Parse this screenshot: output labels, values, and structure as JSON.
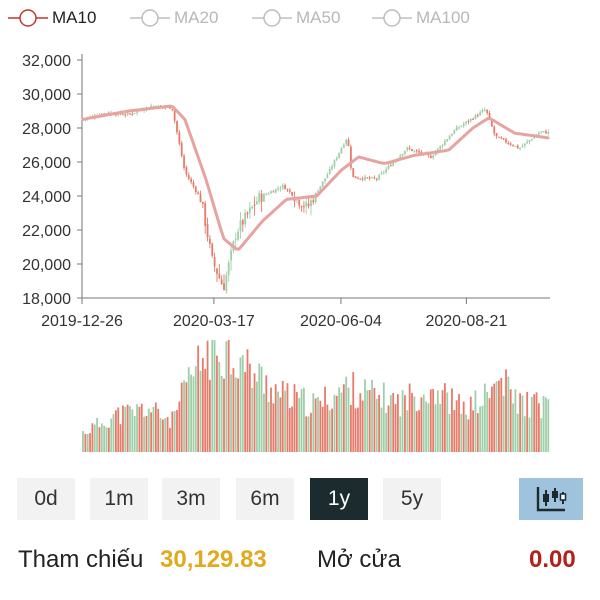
{
  "legend": [
    {
      "label": "MA10",
      "color": "#c0392b",
      "active": true
    },
    {
      "label": "MA20",
      "color": "#bdbdbd",
      "active": false
    },
    {
      "label": "MA50",
      "color": "#bdbdbd",
      "active": false
    },
    {
      "label": "MA100",
      "color": "#bdbdbd",
      "active": false
    }
  ],
  "chart_data": {
    "type": "candlestick",
    "y_ticks": [
      "32,000",
      "30,000",
      "28,000",
      "26,000",
      "24,000",
      "22,000",
      "20,000",
      "18,000"
    ],
    "ylim": [
      18000,
      32000
    ],
    "x_ticks": [
      "2019-12-26",
      "2020-03-17",
      "2020-06-04",
      "2020-08-21"
    ],
    "colors": {
      "up": "#9fcfa9",
      "down": "#e87a6a",
      "ma10": "#e7a3a0"
    },
    "close_series": [
      [
        "2019-12-26",
        28500
      ],
      [
        "2020-01-10",
        28900
      ],
      [
        "2020-01-24",
        28800
      ],
      [
        "2020-02-07",
        29300
      ],
      [
        "2020-02-20",
        29200
      ],
      [
        "2020-02-28",
        25400
      ],
      [
        "2020-03-09",
        23800
      ],
      [
        "2020-03-16",
        20200
      ],
      [
        "2020-03-23",
        18600
      ],
      [
        "2020-03-31",
        21900
      ],
      [
        "2020-04-14",
        23900
      ],
      [
        "2020-04-29",
        24600
      ],
      [
        "2020-05-14",
        23300
      ],
      [
        "2020-05-28",
        25500
      ],
      [
        "2020-06-08",
        27500
      ],
      [
        "2020-06-11",
        25100
      ],
      [
        "2020-06-26",
        25000
      ],
      [
        "2020-07-15",
        26800
      ],
      [
        "2020-07-30",
        26300
      ],
      [
        "2020-08-14",
        27900
      ],
      [
        "2020-09-02",
        29100
      ],
      [
        "2020-09-08",
        27500
      ],
      [
        "2020-09-23",
        26800
      ],
      [
        "2020-10-06",
        27800
      ],
      [
        "2020-10-12",
        27700
      ]
    ],
    "ma10_series": [
      [
        "2019-12-26",
        28500
      ],
      [
        "2020-01-24",
        29000
      ],
      [
        "2020-02-20",
        29300
      ],
      [
        "2020-02-28",
        28500
      ],
      [
        "2020-03-12",
        25000
      ],
      [
        "2020-03-23",
        21500
      ],
      [
        "2020-04-01",
        20800
      ],
      [
        "2020-04-16",
        22500
      ],
      [
        "2020-05-01",
        23800
      ],
      [
        "2020-05-20",
        24000
      ],
      [
        "2020-06-04",
        25500
      ],
      [
        "2020-06-15",
        26300
      ],
      [
        "2020-07-01",
        25900
      ],
      [
        "2020-07-20",
        26400
      ],
      [
        "2020-08-10",
        26700
      ],
      [
        "2020-08-25",
        28000
      ],
      [
        "2020-09-04",
        28600
      ],
      [
        "2020-09-20",
        27700
      ],
      [
        "2020-10-12",
        27400
      ]
    ],
    "volume_series": [
      [
        "2019-12-26",
        18
      ],
      [
        "2020-01-15",
        35
      ],
      [
        "2020-02-05",
        42
      ],
      [
        "2020-02-20",
        30
      ],
      [
        "2020-03-02",
        70
      ],
      [
        "2020-03-13",
        95
      ],
      [
        "2020-03-24",
        100
      ],
      [
        "2020-04-07",
        80
      ],
      [
        "2020-04-28",
        55
      ],
      [
        "2020-05-19",
        45
      ],
      [
        "2020-06-08",
        62
      ],
      [
        "2020-06-23",
        55
      ],
      [
        "2020-07-10",
        48
      ],
      [
        "2020-07-31",
        62
      ],
      [
        "2020-08-20",
        40
      ],
      [
        "2020-09-04",
        55
      ],
      [
        "2020-09-11",
        70
      ],
      [
        "2020-09-22",
        48
      ],
      [
        "2020-10-12",
        44
      ]
    ],
    "volume_ylim": [
      0,
      100
    ]
  },
  "timeframes": [
    "0d",
    "1m",
    "3m",
    "6m",
    "1y",
    "5y"
  ],
  "active_timeframe": "1y",
  "chart_toggle_icon": "candlestick-chart-icon",
  "footer": {
    "ref_label": "Tham chiếu",
    "ref_value": "30,129.83",
    "ref_color": "#e2a91c",
    "open_label": "Mở cửa",
    "open_value": "0.00",
    "open_color": "#b3201a"
  }
}
